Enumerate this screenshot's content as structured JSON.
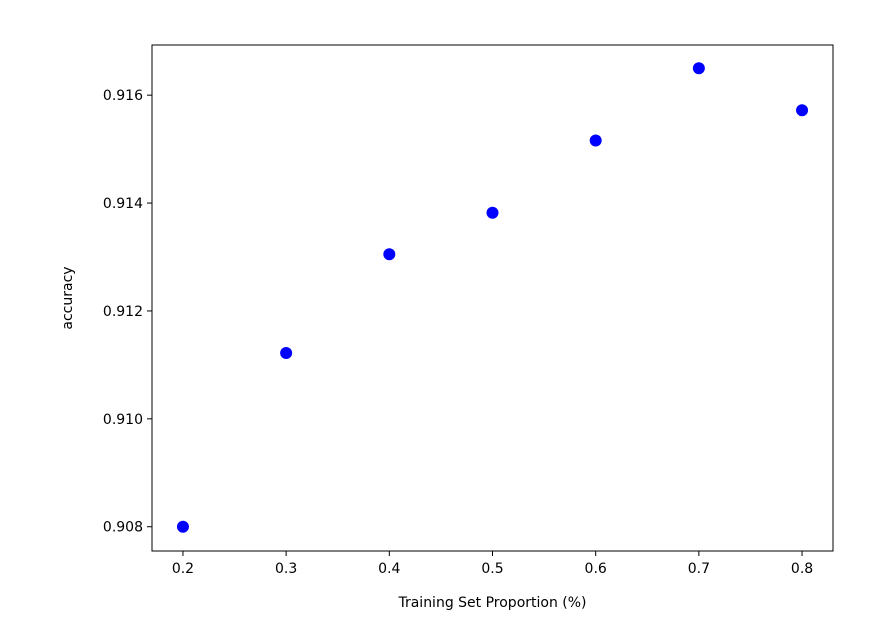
{
  "chart_data": {
    "type": "scatter",
    "title": "",
    "xlabel": "Training Set Proportion (%)",
    "ylabel": "accuracy",
    "x": [
      0.2,
      0.3,
      0.4,
      0.5,
      0.6,
      0.7,
      0.8
    ],
    "y": [
      0.908,
      0.91122,
      0.91305,
      0.91382,
      0.91516,
      0.9165,
      0.91572
    ],
    "xlim": [
      0.17,
      0.83
    ],
    "ylim": [
      0.90755,
      0.91693
    ],
    "xticks": [
      0.2,
      0.3,
      0.4,
      0.5,
      0.6,
      0.7,
      0.8
    ],
    "xtick_labels": [
      "0.2",
      "0.3",
      "0.4",
      "0.5",
      "0.6",
      "0.7",
      "0.8"
    ],
    "yticks": [
      0.908,
      0.91,
      0.912,
      0.914,
      0.916
    ],
    "ytick_labels": [
      "0.908",
      "0.910",
      "0.912",
      "0.914",
      "0.916"
    ],
    "marker_color": "#0000ff",
    "grid": false,
    "legend": "none"
  }
}
